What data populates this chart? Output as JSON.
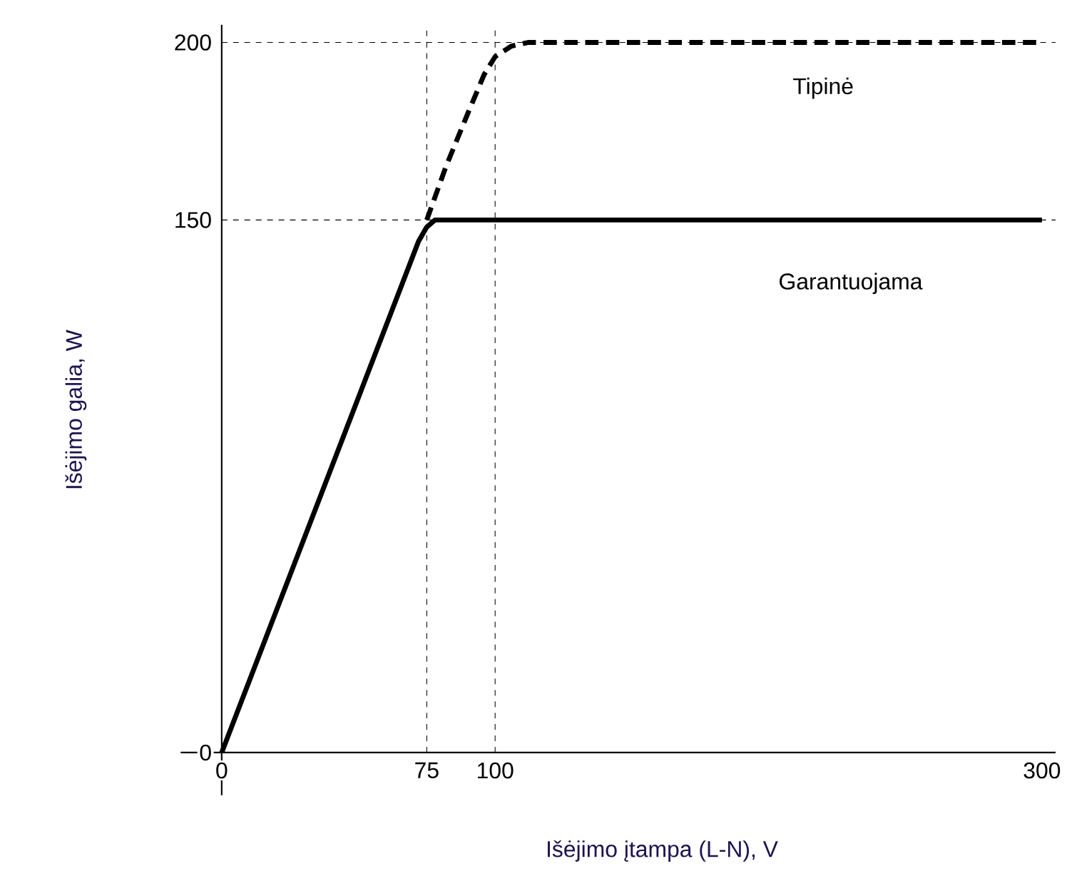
{
  "chart_data": {
    "type": "line",
    "xlabel": "Išėjimo įtampa (L-N), V",
    "ylabel": "Išėjimo galia, W",
    "xlim": [
      -15,
      305
    ],
    "ylim": [
      -12,
      205
    ],
    "xticks": [
      0,
      75,
      100,
      300
    ],
    "yticks": [
      0,
      150,
      200
    ],
    "grid": false,
    "legend": false,
    "marker": "none",
    "series": [
      {
        "name": "Garantuojama",
        "color": "#000000",
        "line_style": "solid",
        "x": [
          0,
          72,
          75,
          78,
          82,
          300
        ],
        "values": [
          0,
          144,
          148,
          150,
          150,
          150
        ]
      },
      {
        "name": "Tipinė",
        "color": "#000000",
        "line_style": "dashed",
        "x": [
          75,
          82,
          90,
          96,
          100,
          106,
          112,
          300
        ],
        "values": [
          150,
          165,
          180,
          191,
          196,
          199,
          200,
          200
        ]
      }
    ],
    "ref_lines": [
      {
        "axis": "x",
        "value": 75,
        "line_style": "dashed",
        "color": "#000000"
      },
      {
        "axis": "x",
        "value": 100,
        "line_style": "dashed",
        "color": "#000000"
      },
      {
        "axis": "y",
        "value": 150,
        "line_style": "dashed",
        "color": "#000000"
      },
      {
        "axis": "y",
        "value": 200,
        "line_style": "dashed",
        "color": "#000000"
      }
    ]
  }
}
